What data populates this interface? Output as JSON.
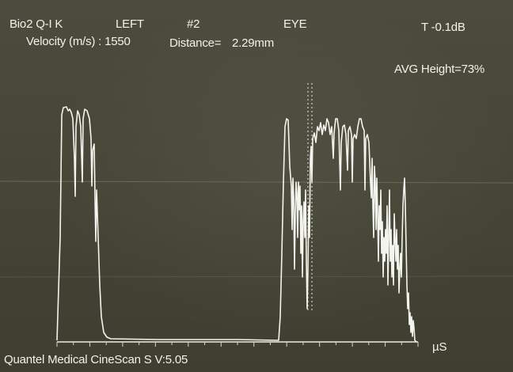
{
  "header": {
    "device_id": "Bio2 Q-I K",
    "side": "LEFT",
    "measure_number": "#2",
    "mode": "EYE",
    "gain": "T -0.1dB",
    "velocity_label": "Velocity (m/s) : 1550",
    "distance_label": "Distance=",
    "distance_value": "2.29mm",
    "avg_height": "AVG Height=73%"
  },
  "axis": {
    "x_unit": "µS"
  },
  "footer": {
    "software": "Quantel Medical CineScan S V:5.05"
  },
  "colors": {
    "background": "#4a4a3c",
    "trace": "#f4f4ee",
    "text": "#f2f2ea"
  }
}
